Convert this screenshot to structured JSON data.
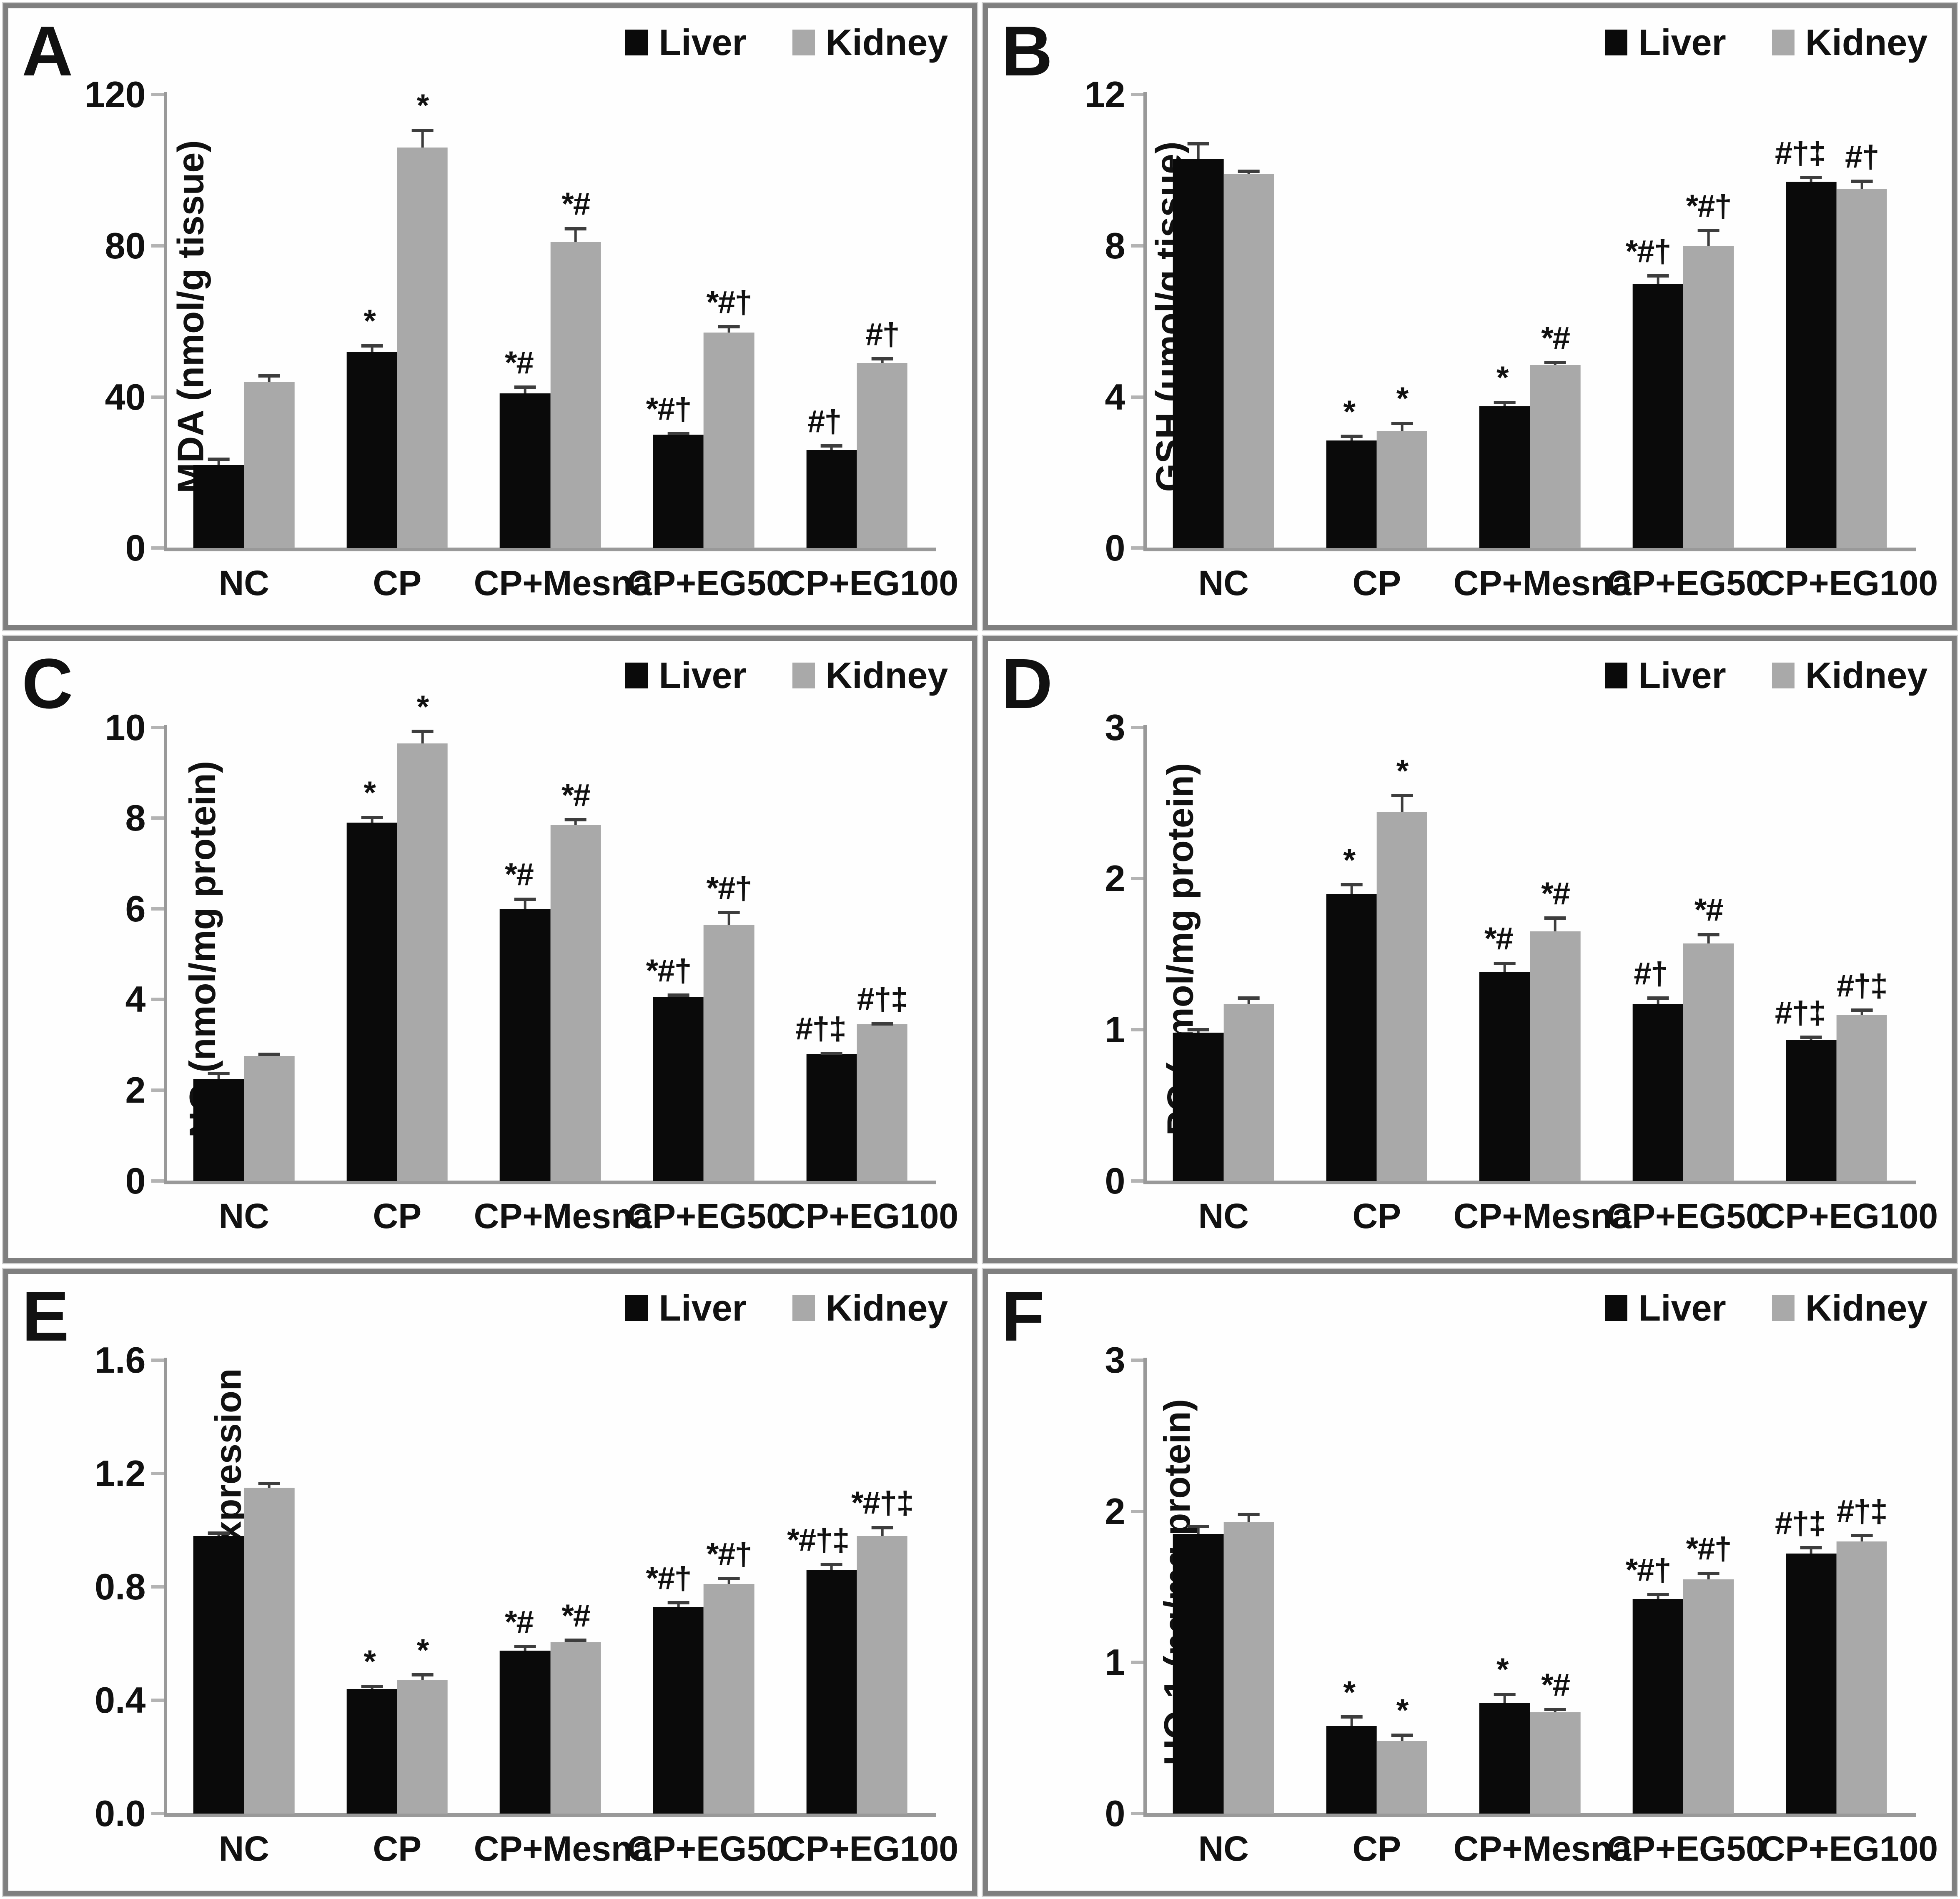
{
  "figure": {
    "legend": {
      "liver_label": "Liver",
      "kidney_label": "Kidney"
    },
    "colors": {
      "liver": "#0a0a0a",
      "kidney": "#a9a9a9",
      "axis": "#999999",
      "tick": "#b3b3b3",
      "error_bar": "#3d3d3d",
      "frame": "#7f7f7f"
    }
  },
  "chart_data": [
    {
      "type": "bar",
      "panel": "A",
      "title": "",
      "xlabel": "",
      "ylabel": "MDA (nmol/g tissue)",
      "ylim": [
        0,
        120
      ],
      "yticks": [
        "0",
        "40",
        "80",
        "120"
      ],
      "grid": false,
      "legend_position": "top-right",
      "categories": [
        "NC",
        "CP",
        "CP+Mesna",
        "CP+EG50",
        "CP+EG100"
      ],
      "series": [
        {
          "name": "Liver",
          "values": [
            22,
            52,
            41,
            30,
            26
          ],
          "errors": [
            2,
            2,
            2,
            0.8,
            1.5
          ],
          "annotations": [
            "",
            "*",
            "*#",
            "*#†",
            "#†"
          ]
        },
        {
          "name": "Kidney",
          "values": [
            44,
            106,
            81,
            57,
            49
          ],
          "errors": [
            2,
            5,
            4,
            2,
            1.5
          ],
          "annotations": [
            "",
            "*",
            "*#",
            "*#†",
            "#†"
          ]
        }
      ]
    },
    {
      "type": "bar",
      "panel": "B",
      "title": "",
      "xlabel": "",
      "ylabel": "GSH (μmol/g tissue)",
      "ylim": [
        0,
        12
      ],
      "yticks": [
        "0",
        "4",
        "8",
        "12"
      ],
      "grid": false,
      "legend_position": "top-right",
      "categories": [
        "NC",
        "CP",
        "CP+Mesna",
        "CP+EG50",
        "CP+EG100"
      ],
      "series": [
        {
          "name": "Liver",
          "values": [
            10.3,
            2.85,
            3.75,
            7.0,
            9.7
          ],
          "errors": [
            0.45,
            0.15,
            0.15,
            0.25,
            0.15
          ],
          "annotations": [
            "",
            "*",
            "*",
            "*#†",
            "#†‡"
          ]
        },
        {
          "name": "Kidney",
          "values": [
            9.9,
            3.1,
            4.85,
            8.0,
            9.5
          ],
          "errors": [
            0.12,
            0.25,
            0.1,
            0.45,
            0.25
          ],
          "annotations": [
            "",
            "*",
            "*#",
            "*#†",
            "#†"
          ]
        }
      ]
    },
    {
      "type": "bar",
      "panel": "C",
      "title": "",
      "xlabel": "",
      "ylabel": "NO (nmol/mg protein)",
      "ylim": [
        0,
        10
      ],
      "yticks": [
        "0",
        "2",
        "4",
        "6",
        "8",
        "10"
      ],
      "grid": false,
      "legend_position": "top-right",
      "categories": [
        "NC",
        "CP",
        "CP+Mesna",
        "CP+EG50",
        "CP+EG100"
      ],
      "series": [
        {
          "name": "Liver",
          "values": [
            2.25,
            7.9,
            6.0,
            4.05,
            2.8
          ],
          "errors": [
            0.15,
            0.15,
            0.25,
            0.08,
            0.05
          ],
          "annotations": [
            "",
            "*",
            "*#",
            "*#†",
            "#†‡"
          ]
        },
        {
          "name": "Kidney",
          "values": [
            2.75,
            9.65,
            7.85,
            5.65,
            3.45
          ],
          "errors": [
            0.08,
            0.3,
            0.15,
            0.3,
            0.05
          ],
          "annotations": [
            "",
            "*",
            "*#",
            "*#†",
            "#†‡"
          ]
        }
      ]
    },
    {
      "type": "bar",
      "panel": "D",
      "title": "",
      "xlabel": "",
      "ylabel": "PC (nmol/mg protein)",
      "ylim": [
        0,
        3
      ],
      "yticks": [
        "0",
        "1",
        "2",
        "3"
      ],
      "grid": false,
      "legend_position": "top-right",
      "categories": [
        "NC",
        "CP",
        "CP+Mesna",
        "CP+EG50",
        "CP+EG100"
      ],
      "series": [
        {
          "name": "Liver",
          "values": [
            0.98,
            1.9,
            1.38,
            1.17,
            0.93
          ],
          "errors": [
            0.03,
            0.07,
            0.07,
            0.05,
            0.03
          ],
          "annotations": [
            "",
            "*",
            "*#",
            "#†",
            "#†‡"
          ]
        },
        {
          "name": "Kidney",
          "values": [
            1.17,
            2.44,
            1.65,
            1.57,
            1.1
          ],
          "errors": [
            0.05,
            0.12,
            0.1,
            0.07,
            0.04
          ],
          "annotations": [
            "",
            "*",
            "*#",
            "*#",
            "#†‡"
          ]
        }
      ]
    },
    {
      "type": "bar",
      "panel": "E",
      "title": "",
      "xlabel": "",
      "ylabel": "Relative Nrf2 expression",
      "ylim": [
        0,
        1.6
      ],
      "yticks": [
        "0.0",
        "0.4",
        "0.8",
        "1.2",
        "1.6"
      ],
      "grid": false,
      "legend_position": "top-right",
      "categories": [
        "NC",
        "CP",
        "CP+Mesna",
        "CP+EG50",
        "CP+EG100"
      ],
      "series": [
        {
          "name": "Liver",
          "values": [
            0.98,
            0.44,
            0.575,
            0.73,
            0.86
          ],
          "errors": [
            0.015,
            0.015,
            0.02,
            0.02,
            0.025
          ],
          "annotations": [
            "",
            "*",
            "*#",
            "*#†",
            "*#†‡"
          ]
        },
        {
          "name": "Kidney",
          "values": [
            1.15,
            0.47,
            0.605,
            0.81,
            0.98
          ],
          "errors": [
            0.02,
            0.025,
            0.012,
            0.025,
            0.035
          ],
          "annotations": [
            "",
            "*",
            "*#",
            "*#†",
            "*#†‡"
          ]
        }
      ]
    },
    {
      "type": "bar",
      "panel": "F",
      "title": "",
      "xlabel": "",
      "ylabel": "HO-1 (ng/mg protein)",
      "ylim": [
        0,
        3
      ],
      "yticks": [
        "0",
        "1",
        "2",
        "3"
      ],
      "grid": false,
      "legend_position": "top-right",
      "categories": [
        "NC",
        "CP",
        "CP+Mesna",
        "CP+EG50",
        "CP+EG100"
      ],
      "series": [
        {
          "name": "Liver",
          "values": [
            1.85,
            0.58,
            0.73,
            1.42,
            1.72
          ],
          "errors": [
            0.06,
            0.07,
            0.07,
            0.04,
            0.05
          ],
          "annotations": [
            "",
            "*",
            "*",
            "*#†",
            "#†‡"
          ]
        },
        {
          "name": "Kidney",
          "values": [
            1.93,
            0.48,
            0.67,
            1.55,
            1.8
          ],
          "errors": [
            0.06,
            0.05,
            0.03,
            0.05,
            0.05
          ],
          "annotations": [
            "",
            "*",
            "*#",
            "*#†",
            "#†‡"
          ]
        }
      ]
    }
  ]
}
